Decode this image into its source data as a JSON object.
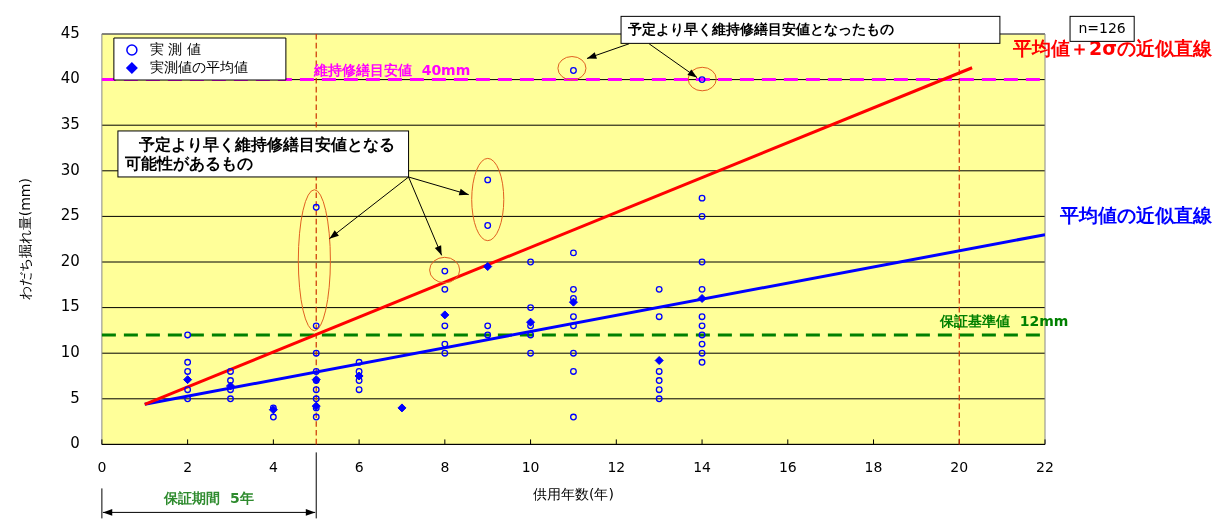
{
  "chart_data": {
    "type": "scatter",
    "xlabel": "供用年数(年)",
    "ylabel": "わだち掘れ量(mm)",
    "xlim": [
      0,
      22
    ],
    "xticks": [
      0,
      2,
      4,
      6,
      8,
      10,
      12,
      14,
      16,
      18,
      20,
      22
    ],
    "ylim": [
      0,
      45
    ],
    "yticks": [
      0,
      5,
      10,
      15,
      20,
      25,
      30,
      35,
      40,
      45
    ],
    "grid": "y",
    "legend": "top left",
    "series": [
      {
        "name": "実 測 値",
        "marker": "circle",
        "color": "#0000ff",
        "x": [
          2,
          2,
          2,
          2,
          2,
          3,
          3,
          3,
          3,
          4,
          4,
          5,
          5,
          5,
          5,
          5,
          5,
          5,
          5,
          5,
          6,
          6,
          6,
          6,
          8,
          8,
          8,
          8,
          8,
          9,
          9,
          9,
          9,
          10,
          10,
          10,
          10,
          10,
          11,
          11,
          11,
          11,
          11,
          11,
          11,
          11,
          11,
          13,
          13,
          13,
          13,
          13,
          13,
          14,
          14,
          14,
          14,
          14,
          14,
          14,
          14,
          14,
          14,
          14
        ],
        "values": [
          12,
          9,
          8,
          6,
          5,
          8,
          7,
          6,
          5,
          4,
          3,
          26,
          13,
          10,
          8,
          7,
          6,
          5,
          4,
          3,
          9,
          8,
          7,
          6,
          19,
          17,
          13,
          11,
          10,
          29,
          24,
          13,
          12,
          20,
          15,
          13,
          12,
          10,
          41,
          21,
          17,
          16,
          14,
          13,
          10,
          8,
          3,
          17,
          14,
          8,
          7,
          6,
          5,
          40,
          27,
          25,
          20,
          17,
          14,
          13,
          12,
          11,
          10,
          9
        ]
      },
      {
        "name": "実測値の平均値",
        "marker": "diamond",
        "color": "#0000ff",
        "x": [
          2,
          3,
          4,
          5,
          5,
          6,
          7,
          8,
          9,
          10,
          11,
          13,
          14
        ],
        "values": [
          7.1,
          6.4,
          3.8,
          7.1,
          4.2,
          7.5,
          4,
          14.2,
          19.5,
          13.4,
          15.6,
          9.2,
          16
        ]
      },
      {
        "name": "平均値＋2σの近似直線",
        "type": "line",
        "marker": "none",
        "color": "#ff0000",
        "x": [
          1,
          20.3
        ],
        "values": [
          4.4,
          41.3
        ]
      },
      {
        "name": "平均値の近似直線",
        "type": "line",
        "marker": "none",
        "color": "#0000ff",
        "x": [
          1,
          22
        ],
        "values": [
          4.4,
          23
        ]
      }
    ],
    "ref_lines": [
      {
        "axis": "y",
        "value": 40,
        "label": "維持修繕目安値  40mm",
        "color": "#ff00ff",
        "line_style": "dashed"
      },
      {
        "axis": "y",
        "value": 12,
        "label": "保証基準値  12mm",
        "color": "#008000",
        "line_style": "dashed"
      },
      {
        "axis": "x",
        "value": 5,
        "color": "#cc3300",
        "line_style": "dashed"
      },
      {
        "axis": "x",
        "value": 20,
        "color": "#cc3300",
        "line_style": "dashed"
      }
    ],
    "annotations": [
      {
        "text": "予定より早く維持修繕目安値となったもの",
        "x": 14,
        "y": 40
      },
      "予定より早く維持修繕目安値となる可能性があるもの",
      "n=126",
      "保証期間  5年"
    ]
  }
}
